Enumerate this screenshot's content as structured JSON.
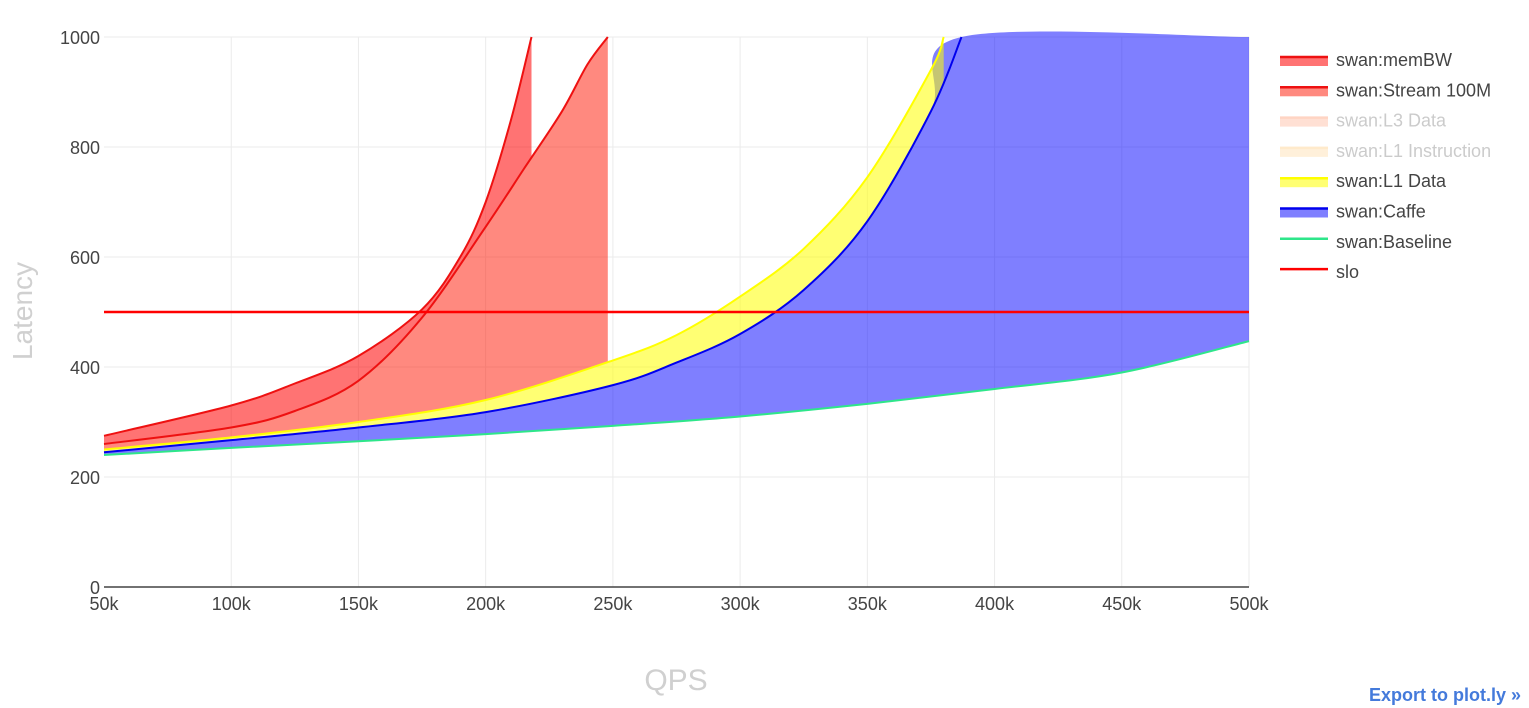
{
  "chart_data": {
    "type": "area",
    "title": "",
    "xlabel": "QPS",
    "ylabel": "Latency",
    "xlim": [
      50000,
      500000
    ],
    "ylim": [
      0,
      1000
    ],
    "x_ticks": [
      50000,
      100000,
      150000,
      200000,
      250000,
      300000,
      350000,
      400000,
      450000,
      500000
    ],
    "x_tick_labels": [
      "50k",
      "100k",
      "150k",
      "200k",
      "250k",
      "300k",
      "350k",
      "400k",
      "450k",
      "500k"
    ],
    "y_ticks": [
      0,
      200,
      400,
      600,
      800,
      1000
    ],
    "y_tick_labels": [
      "0",
      "200",
      "400",
      "600",
      "800",
      "1000"
    ],
    "grid": true,
    "legend_position": "right",
    "series": [
      {
        "name": "swan:Baseline",
        "legend_label": "swan:Baseline",
        "color": "#2ee68a",
        "fill": "none",
        "visible": true,
        "x": [
          50000,
          100000,
          150000,
          200000,
          250000,
          300000,
          350000,
          400000,
          450000,
          500000
        ],
        "y": [
          240,
          253,
          265,
          278,
          293,
          310,
          333,
          360,
          390,
          447
        ]
      },
      {
        "name": "swan:Caffe",
        "legend_label": "swan:Caffe",
        "color": "#0000ee",
        "fill": "rgba(0,0,255,0.5)",
        "fill_to": "swan:Baseline",
        "visible": true,
        "x": [
          50000,
          100000,
          150000,
          200000,
          250000,
          275000,
          300000,
          325000,
          350000,
          375000,
          387000,
          500000
        ],
        "y": [
          245,
          267,
          290,
          318,
          367,
          408,
          460,
          540,
          665,
          865,
          1000,
          1000
        ]
      },
      {
        "name": "swan:L1 Data",
        "legend_label": "swan:L1 Data",
        "color": "#ffff00",
        "fill": "rgba(255,255,0,0.55)",
        "fill_to": "swan:Caffe",
        "visible": true,
        "x": [
          50000,
          100000,
          150000,
          200000,
          250000,
          275000,
          300000,
          325000,
          350000,
          375000,
          380000
        ],
        "y": [
          250,
          272,
          300,
          340,
          412,
          458,
          528,
          615,
          745,
          940,
          1000
        ]
      },
      {
        "name": "swan:L1 Instruction",
        "legend_label": "swan:L1 Instruction",
        "color": "#ffd699",
        "fill": "rgba(255,200,120,0.55)",
        "visible": false,
        "x": [],
        "y": []
      },
      {
        "name": "swan:L3 Data",
        "legend_label": "swan:L3 Data",
        "color": "#ffaa88",
        "fill": "rgba(255,140,100,0.55)",
        "visible": false,
        "x": [],
        "y": []
      },
      {
        "name": "swan:Stream 100M",
        "legend_label": "swan:Stream 100M",
        "color": "#ee1111",
        "fill": "rgba(255,20,0,0.5)",
        "fill_to": "swan:L1 Data",
        "visible": true,
        "x": [
          50000,
          100000,
          125000,
          150000,
          175000,
          200000,
          215000,
          230000,
          240000,
          248000
        ],
        "y": [
          260,
          290,
          320,
          375,
          490,
          655,
          760,
          865,
          950,
          1000
        ]
      },
      {
        "name": "swan:memBW",
        "legend_label": "swan:memBW",
        "color": "#ee1111",
        "fill": "rgba(255,0,0,0.55)",
        "fill_to": "swan:Stream 100M",
        "visible": true,
        "x": [
          50000,
          100000,
          125000,
          150000,
          175000,
          190000,
          200000,
          210000,
          218000
        ],
        "y": [
          275,
          330,
          370,
          420,
          505,
          600,
          700,
          850,
          1000
        ]
      },
      {
        "name": "slo",
        "legend_label": "slo",
        "color": "#ff0000",
        "fill": "none",
        "visible": true,
        "x": [
          50000,
          500000
        ],
        "y": [
          500,
          500
        ]
      }
    ]
  },
  "export_link": "Export to plot.ly »"
}
